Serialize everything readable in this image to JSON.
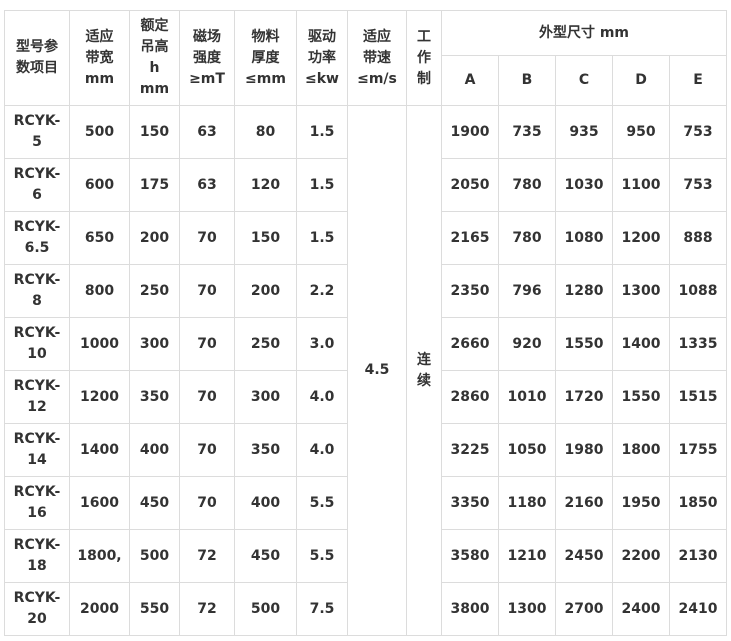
{
  "table": {
    "headers": [
      "型号参数项目",
      "适应带宽mm",
      "额定吊高hmm",
      "磁场强度≥mT",
      "物料厚度≤mm",
      "驱动功率≤kw",
      "适应带速≤m/s",
      "工作制"
    ],
    "header_lines": [
      [
        "型号参",
        "数项目"
      ],
      [
        "适应",
        "带宽",
        "mm"
      ],
      [
        "额定",
        "吊高",
        "h",
        "mm"
      ],
      [
        "磁场",
        "强度",
        "≥mT"
      ],
      [
        "物料",
        "厚度",
        "≤mm"
      ],
      [
        "驱动",
        "功率",
        "≤kw"
      ],
      [
        "适应",
        "带速",
        "≤m/s"
      ],
      [
        "工",
        "作",
        "制"
      ]
    ],
    "dim_group": "外型尺寸 mm",
    "dim_columns": [
      "A",
      "B",
      "C",
      "D",
      "E"
    ],
    "speed_value": "4.5",
    "duty_value_lines": [
      "连",
      "续"
    ],
    "rows": [
      {
        "model": [
          "RCYK-",
          "5"
        ],
        "width": "500",
        "height": "150",
        "field": "63",
        "thick": "80",
        "power": "1.5",
        "dims": [
          "1900",
          "735",
          "935",
          "950",
          "753"
        ]
      },
      {
        "model": [
          "RCYK-",
          "6"
        ],
        "width": "600",
        "height": "175",
        "field": "63",
        "thick": "120",
        "power": "1.5",
        "dims": [
          "2050",
          "780",
          "1030",
          "1100",
          "753"
        ]
      },
      {
        "model": [
          "RCYK-",
          "6.5"
        ],
        "width": "650",
        "height": "200",
        "field": "70",
        "thick": "150",
        "power": "1.5",
        "dims": [
          "2165",
          "780",
          "1080",
          "1200",
          "888"
        ]
      },
      {
        "model": [
          "RCYK-",
          "8"
        ],
        "width": "800",
        "height": "250",
        "field": "70",
        "thick": "200",
        "power": "2.2",
        "dims": [
          "2350",
          "796",
          "1280",
          "1300",
          "1088"
        ]
      },
      {
        "model": [
          "RCYK-",
          "10"
        ],
        "width": "1000",
        "height": "300",
        "field": "70",
        "thick": "250",
        "power": "3.0",
        "dims": [
          "2660",
          "920",
          "1550",
          "1400",
          "1335"
        ]
      },
      {
        "model": [
          "RCYK-",
          "12"
        ],
        "width": "1200",
        "height": "350",
        "field": "70",
        "thick": "300",
        "power": "4.0",
        "dims": [
          "2860",
          "1010",
          "1720",
          "1550",
          "1515"
        ]
      },
      {
        "model": [
          "RCYK-",
          "14"
        ],
        "width": "1400",
        "height": "400",
        "field": "70",
        "thick": "350",
        "power": "4.0",
        "dims": [
          "3225",
          "1050",
          "1980",
          "1800",
          "1755"
        ]
      },
      {
        "model": [
          "RCYK-",
          "16"
        ],
        "width": "1600",
        "height": "450",
        "field": "70",
        "thick": "400",
        "power": "5.5",
        "dims": [
          "3350",
          "1180",
          "2160",
          "1950",
          "1850"
        ]
      },
      {
        "model": [
          "RCYK-",
          "18"
        ],
        "width": "1800,",
        "height": "500",
        "field": "72",
        "thick": "450",
        "power": "5.5",
        "dims": [
          "3580",
          "1210",
          "2450",
          "2200",
          "2130"
        ]
      },
      {
        "model": [
          "RCYK-",
          "20"
        ],
        "width": "2000",
        "height": "550",
        "field": "72",
        "thick": "500",
        "power": "7.5",
        "dims": [
          "3800",
          "1300",
          "2700",
          "2400",
          "2410"
        ]
      }
    ]
  }
}
